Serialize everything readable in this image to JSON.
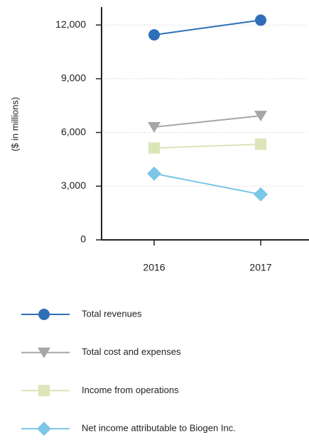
{
  "chart_data": {
    "type": "line",
    "y_label": "($ in millions)",
    "categories": [
      "2016",
      "2017"
    ],
    "ylim": [
      0,
      13000
    ],
    "yticks": [
      0,
      {
        "value": 3000,
        "label": "3,000"
      },
      {
        "value": 6000,
        "label": "6,000"
      },
      {
        "value": 9000,
        "label": "9,000"
      },
      {
        "value": 12000,
        "label": "12,000"
      }
    ],
    "grid": true,
    "legend": "bottom",
    "series": [
      {
        "name": "Total revenues",
        "color": "#2e6fb7",
        "marker": "circle",
        "values": [
          11450,
          12270
        ]
      },
      {
        "name": "Total cost and expenses",
        "color": "#a6a6a6",
        "marker": "triangle-down",
        "values": [
          6300,
          6930
        ]
      },
      {
        "name": "Income from operations",
        "color": "#dbe5b8",
        "marker": "square",
        "values": [
          5130,
          5340
        ]
      },
      {
        "name": "Net income attributable to Biogen Inc.",
        "color": "#7cc6e6",
        "marker": "diamond",
        "values": [
          3700,
          2540
        ]
      }
    ]
  }
}
